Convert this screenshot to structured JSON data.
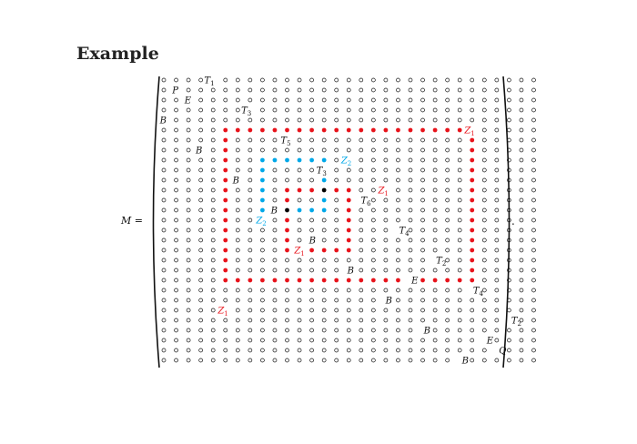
{
  "slide": {
    "title": "Example"
  },
  "equation": {
    "lhs": "M =",
    "rhs_end": "."
  },
  "matrix": {
    "rows": 24,
    "cols": 31,
    "colors": {
      "open": "#111111",
      "red": "#e8141c",
      "blue": "#00a8e8",
      "black": "#000000"
    },
    "red_paths": [
      {
        "name": "outer-cycle-Z1",
        "cells": [
          [
            5,
            5
          ],
          [
            5,
            25
          ],
          [
            20,
            25
          ],
          [
            20,
            5
          ]
        ]
      },
      {
        "name": "inner-cycle-Z1",
        "cells": [
          [
            11,
            10
          ],
          [
            11,
            15
          ],
          [
            17,
            15
          ],
          [
            17,
            10
          ]
        ]
      }
    ],
    "blue_paths": [
      {
        "name": "cycle-Z2",
        "cells": [
          [
            8,
            8
          ],
          [
            8,
            13
          ],
          [
            13,
            13
          ],
          [
            13,
            8
          ]
        ]
      }
    ],
    "black_dots": [
      [
        11,
        13
      ],
      [
        13,
        10
      ]
    ],
    "labels": [
      {
        "text": "T",
        "sub": "1",
        "row": 0,
        "col": 3.5,
        "color": "#111111"
      },
      {
        "text": "P",
        "sub": "",
        "row": 1,
        "col": 0.9,
        "color": "#111111"
      },
      {
        "text": "E",
        "sub": "",
        "row": 2,
        "col": 1.9,
        "color": "#111111"
      },
      {
        "text": "T",
        "sub": "3",
        "row": 3,
        "col": 6.5,
        "color": "#111111"
      },
      {
        "text": "B",
        "sub": "",
        "row": 4,
        "col": -0.1,
        "color": "#111111"
      },
      {
        "text": "Z",
        "sub": "1",
        "row": 5,
        "col": 24.6,
        "color": "#e8141c"
      },
      {
        "text": "T",
        "sub": "5",
        "row": 6,
        "col": 9.7,
        "color": "#111111"
      },
      {
        "text": "B",
        "sub": "",
        "row": 7,
        "col": 2.8,
        "color": "#111111"
      },
      {
        "text": "Z",
        "sub": "2",
        "row": 8,
        "col": 14.6,
        "color": "#00a8e8"
      },
      {
        "text": "T",
        "sub": "3",
        "row": 9,
        "col": 12.6,
        "color": "#111111"
      },
      {
        "text": "B",
        "sub": "",
        "row": 10,
        "col": 5.8,
        "color": "#111111"
      },
      {
        "text": "Z",
        "sub": "1",
        "row": 11,
        "col": 17.6,
        "color": "#e8141c"
      },
      {
        "text": "T",
        "sub": "6",
        "row": 12,
        "col": 16.2,
        "color": "#111111"
      },
      {
        "text": "B",
        "sub": "",
        "row": 13,
        "col": 8.9,
        "color": "#111111"
      },
      {
        "text": "Z",
        "sub": "2",
        "row": 14,
        "col": 7.7,
        "color": "#00a8e8"
      },
      {
        "text": "T",
        "sub": "4",
        "row": 15,
        "col": 19.3,
        "color": "#111111"
      },
      {
        "text": "B",
        "sub": "",
        "row": 16,
        "col": 12.0,
        "color": "#111111"
      },
      {
        "text": "Z",
        "sub": "1",
        "row": 17,
        "col": 10.8,
        "color": "#e8141c"
      },
      {
        "text": "T",
        "sub": "2",
        "row": 18,
        "col": 22.3,
        "color": "#111111"
      },
      {
        "text": "B",
        "sub": "",
        "row": 19,
        "col": 15.1,
        "color": "#111111"
      },
      {
        "text": "E",
        "sub": "",
        "row": 20,
        "col": 20.3,
        "color": "#111111"
      },
      {
        "text": "T",
        "sub": "4",
        "row": 21,
        "col": 25.3,
        "color": "#111111"
      },
      {
        "text": "B",
        "sub": "",
        "row": 22,
        "col": 18.2,
        "color": "#111111"
      },
      {
        "text": "Z",
        "sub": "1",
        "row": 23,
        "col": 4.6,
        "color": "#e8141c"
      },
      {
        "text": "T",
        "sub": "2",
        "row": 24,
        "col": 28.4,
        "color": "#111111"
      },
      {
        "text": "B",
        "sub": "",
        "row": 25,
        "col": 21.3,
        "color": "#111111"
      },
      {
        "text": "E",
        "sub": "",
        "row": 26,
        "col": 26.4,
        "color": "#111111"
      },
      {
        "text": "Q",
        "sub": "",
        "row": 27,
        "col": 27.4,
        "color": "#111111"
      },
      {
        "text": "B",
        "sub": "",
        "row": 28,
        "col": 24.4,
        "color": "#111111"
      }
    ]
  }
}
